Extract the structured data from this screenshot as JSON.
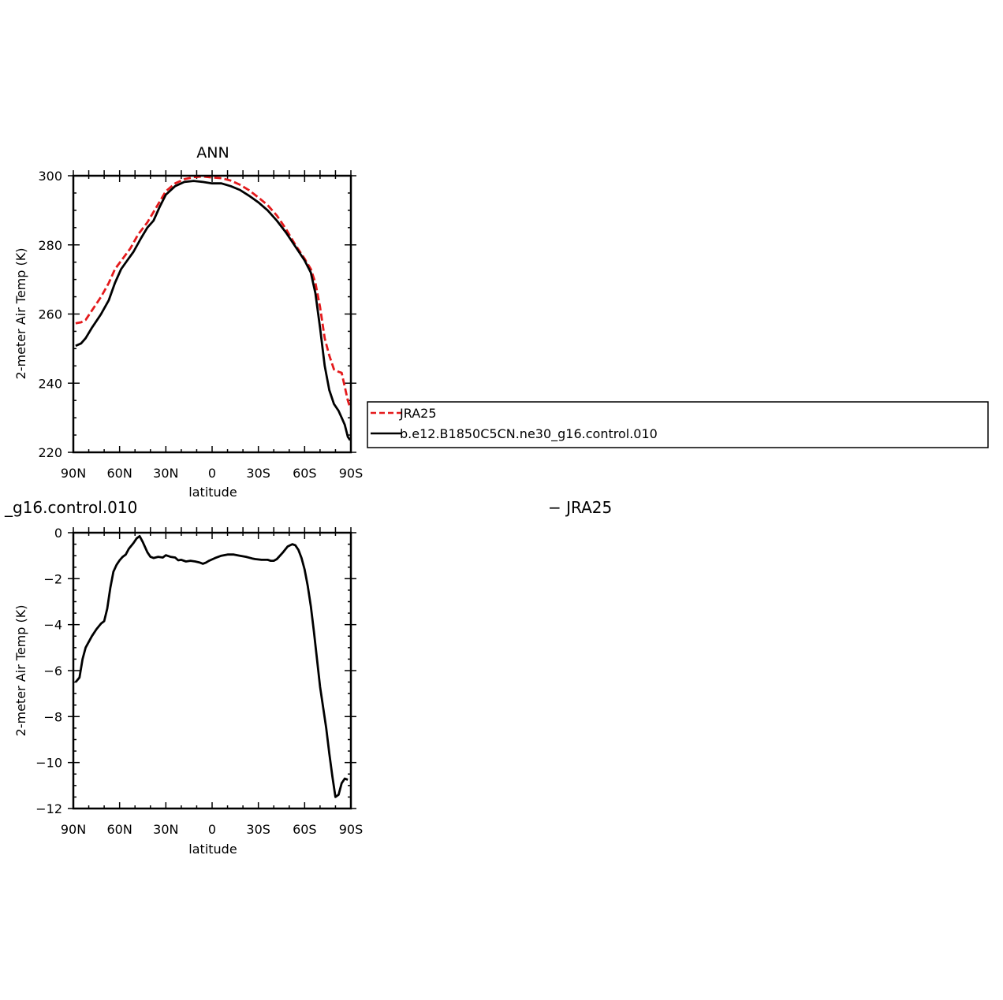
{
  "chart_data": [
    {
      "type": "line",
      "title": "ANN",
      "xlabel": "latitude",
      "ylabel": "2-meter Air Temp (K)",
      "xlim": [
        90,
        -90
      ],
      "ylim": [
        220,
        300
      ],
      "xticks": [
        {
          "value": 90,
          "label": "90N"
        },
        {
          "value": 60,
          "label": "60N"
        },
        {
          "value": 30,
          "label": "30N"
        },
        {
          "value": 0,
          "label": "0"
        },
        {
          "value": -30,
          "label": "30S"
        },
        {
          "value": -60,
          "label": "60S"
        },
        {
          "value": -90,
          "label": "90S"
        }
      ],
      "yticks": [
        {
          "value": 220,
          "label": "220"
        },
        {
          "value": 240,
          "label": "240"
        },
        {
          "value": 260,
          "label": "260"
        },
        {
          "value": 280,
          "label": "280"
        },
        {
          "value": 300,
          "label": "300"
        }
      ],
      "legend": {
        "placement": "right",
        "entries": [
          "JRA25",
          "b.e12.B1850C5CN.ne30_g16.control.010"
        ]
      },
      "series": [
        {
          "name": "JRA25",
          "color": "#e41a1c",
          "dash": "dashed",
          "points": [
            [
              88.5,
              257.3
            ],
            [
              85,
              257.6
            ],
            [
              82,
              258.3
            ],
            [
              78,
              261
            ],
            [
              72,
              265
            ],
            [
              67,
              269
            ],
            [
              63,
              273
            ],
            [
              58,
              276
            ],
            [
              53,
              279
            ],
            [
              48,
              283
            ],
            [
              42,
              286.5
            ],
            [
              36,
              291
            ],
            [
              30,
              295.5
            ],
            [
              24,
              297.8
            ],
            [
              18,
              299
            ],
            [
              12,
              299.6
            ],
            [
              6,
              299.8
            ],
            [
              0,
              299.5
            ],
            [
              -6,
              299.3
            ],
            [
              -12,
              298.6
            ],
            [
              -18,
              297.4
            ],
            [
              -24,
              295.8
            ],
            [
              -30,
              293.7
            ],
            [
              -36,
              291.5
            ],
            [
              -42,
              288.5
            ],
            [
              -48,
              284.5
            ],
            [
              -54,
              280
            ],
            [
              -60,
              276
            ],
            [
              -64,
              273
            ],
            [
              -67,
              269
            ],
            [
              -70,
              262
            ],
            [
              -73,
              253
            ],
            [
              -76,
              248
            ],
            [
              -79,
              244
            ],
            [
              -82,
              243.3
            ],
            [
              -84,
              243
            ],
            [
              -86,
              239
            ],
            [
              -88,
              235
            ],
            [
              -89.5,
              233
            ]
          ]
        },
        {
          "name": "b.e12.B1850C5CN.ne30_g16.control.010",
          "color": "#000000",
          "dash": "solid",
          "points": [
            [
              88.5,
              250.8
            ],
            [
              85,
              251.5
            ],
            [
              82,
              253
            ],
            [
              78,
              256
            ],
            [
              72,
              260
            ],
            [
              67,
              264
            ],
            [
              63,
              269
            ],
            [
              59,
              273
            ],
            [
              55,
              275.5
            ],
            [
              51,
              278
            ],
            [
              46,
              282
            ],
            [
              42,
              285
            ],
            [
              38,
              287
            ],
            [
              34,
              291
            ],
            [
              30,
              294.5
            ],
            [
              24,
              297
            ],
            [
              18,
              298.2
            ],
            [
              12,
              298.5
            ],
            [
              6,
              298.2
            ],
            [
              0,
              297.8
            ],
            [
              -6,
              297.8
            ],
            [
              -12,
              297
            ],
            [
              -18,
              295.9
            ],
            [
              -24,
              294.2
            ],
            [
              -30,
              292.3
            ],
            [
              -36,
              290
            ],
            [
              -42,
              287
            ],
            [
              -48,
              283.5
            ],
            [
              -54,
              279.5
            ],
            [
              -60,
              275.5
            ],
            [
              -64,
              272
            ],
            [
              -67,
              266
            ],
            [
              -70,
              256
            ],
            [
              -73,
              245
            ],
            [
              -76,
              238
            ],
            [
              -79,
              234
            ],
            [
              -82,
              232
            ],
            [
              -84,
              230
            ],
            [
              -86,
              228
            ],
            [
              -88,
              224.5
            ],
            [
              -89.5,
              223.5
            ]
          ]
        }
      ]
    },
    {
      "type": "line",
      "title": "",
      "xlabel": "latitude",
      "ylabel": "2-meter Air Temp (K)",
      "xlim": [
        90,
        -90
      ],
      "ylim": [
        -12,
        0
      ],
      "xticks": [
        {
          "value": 90,
          "label": "90N"
        },
        {
          "value": 60,
          "label": "60N"
        },
        {
          "value": 30,
          "label": "30N"
        },
        {
          "value": 0,
          "label": "0"
        },
        {
          "value": -30,
          "label": "30S"
        },
        {
          "value": -60,
          "label": "60S"
        },
        {
          "value": -90,
          "label": "90S"
        }
      ],
      "yticks": [
        {
          "value": 0,
          "label": "0"
        },
        {
          "value": -2,
          "label": "−2"
        },
        {
          "value": -4,
          "label": "−4"
        },
        {
          "value": -6,
          "label": "−6"
        },
        {
          "value": -8,
          "label": "−8"
        },
        {
          "value": -10,
          "label": "−10"
        },
        {
          "value": -12,
          "label": "−12"
        }
      ],
      "series": [
        {
          "color": "#000000",
          "dash": "solid",
          "points": [
            [
              88.5,
              -6.5
            ],
            [
              86,
              -6.3
            ],
            [
              84,
              -5.5
            ],
            [
              82,
              -5
            ],
            [
              78,
              -4.5
            ],
            [
              75,
              -4.2
            ],
            [
              72,
              -3.95
            ],
            [
              70,
              -3.85
            ],
            [
              68,
              -3.3
            ],
            [
              66,
              -2.4
            ],
            [
              64,
              -1.7
            ],
            [
              62,
              -1.4
            ],
            [
              60,
              -1.2
            ],
            [
              58,
              -1.05
            ],
            [
              56,
              -0.95
            ],
            [
              54,
              -0.7
            ],
            [
              51,
              -0.45
            ],
            [
              49,
              -0.25
            ],
            [
              47,
              -0.15
            ],
            [
              45,
              -0.4
            ],
            [
              42,
              -0.85
            ],
            [
              40,
              -1.05
            ],
            [
              38,
              -1.1
            ],
            [
              35,
              -1.05
            ],
            [
              32,
              -1.08
            ],
            [
              30,
              -0.98
            ],
            [
              27,
              -1.05
            ],
            [
              24,
              -1.08
            ],
            [
              22,
              -1.2
            ],
            [
              20,
              -1.18
            ],
            [
              17,
              -1.25
            ],
            [
              14,
              -1.22
            ],
            [
              11,
              -1.25
            ],
            [
              8,
              -1.3
            ],
            [
              6,
              -1.35
            ],
            [
              4,
              -1.3
            ],
            [
              2,
              -1.22
            ],
            [
              -2,
              -1.1
            ],
            [
              -6,
              -1
            ],
            [
              -10,
              -0.95
            ],
            [
              -14,
              -0.95
            ],
            [
              -18,
              -1
            ],
            [
              -22,
              -1.05
            ],
            [
              -26,
              -1.12
            ],
            [
              -28,
              -1.15
            ],
            [
              -32,
              -1.18
            ],
            [
              -36,
              -1.18
            ],
            [
              -38,
              -1.22
            ],
            [
              -40,
              -1.22
            ],
            [
              -42,
              -1.15
            ],
            [
              -46,
              -0.85
            ],
            [
              -49,
              -0.6
            ],
            [
              -52,
              -0.5
            ],
            [
              -54,
              -0.55
            ],
            [
              -56,
              -0.75
            ],
            [
              -58,
              -1.1
            ],
            [
              -60,
              -1.6
            ],
            [
              -62,
              -2.3
            ],
            [
              -64,
              -3.2
            ],
            [
              -66,
              -4.3
            ],
            [
              -68,
              -5.5
            ],
            [
              -70,
              -6.7
            ],
            [
              -72,
              -7.6
            ],
            [
              -74,
              -8.5
            ],
            [
              -76,
              -9.6
            ],
            [
              -78,
              -10.6
            ],
            [
              -80,
              -11.5
            ],
            [
              -82,
              -11.4
            ],
            [
              -84,
              -10.9
            ],
            [
              -86,
              -10.7
            ],
            [
              -88,
              -10.75
            ]
          ]
        }
      ]
    }
  ],
  "fragments": {
    "bottom_left_label": "_g16.control.010",
    "bottom_right_label": "− JRA25"
  }
}
